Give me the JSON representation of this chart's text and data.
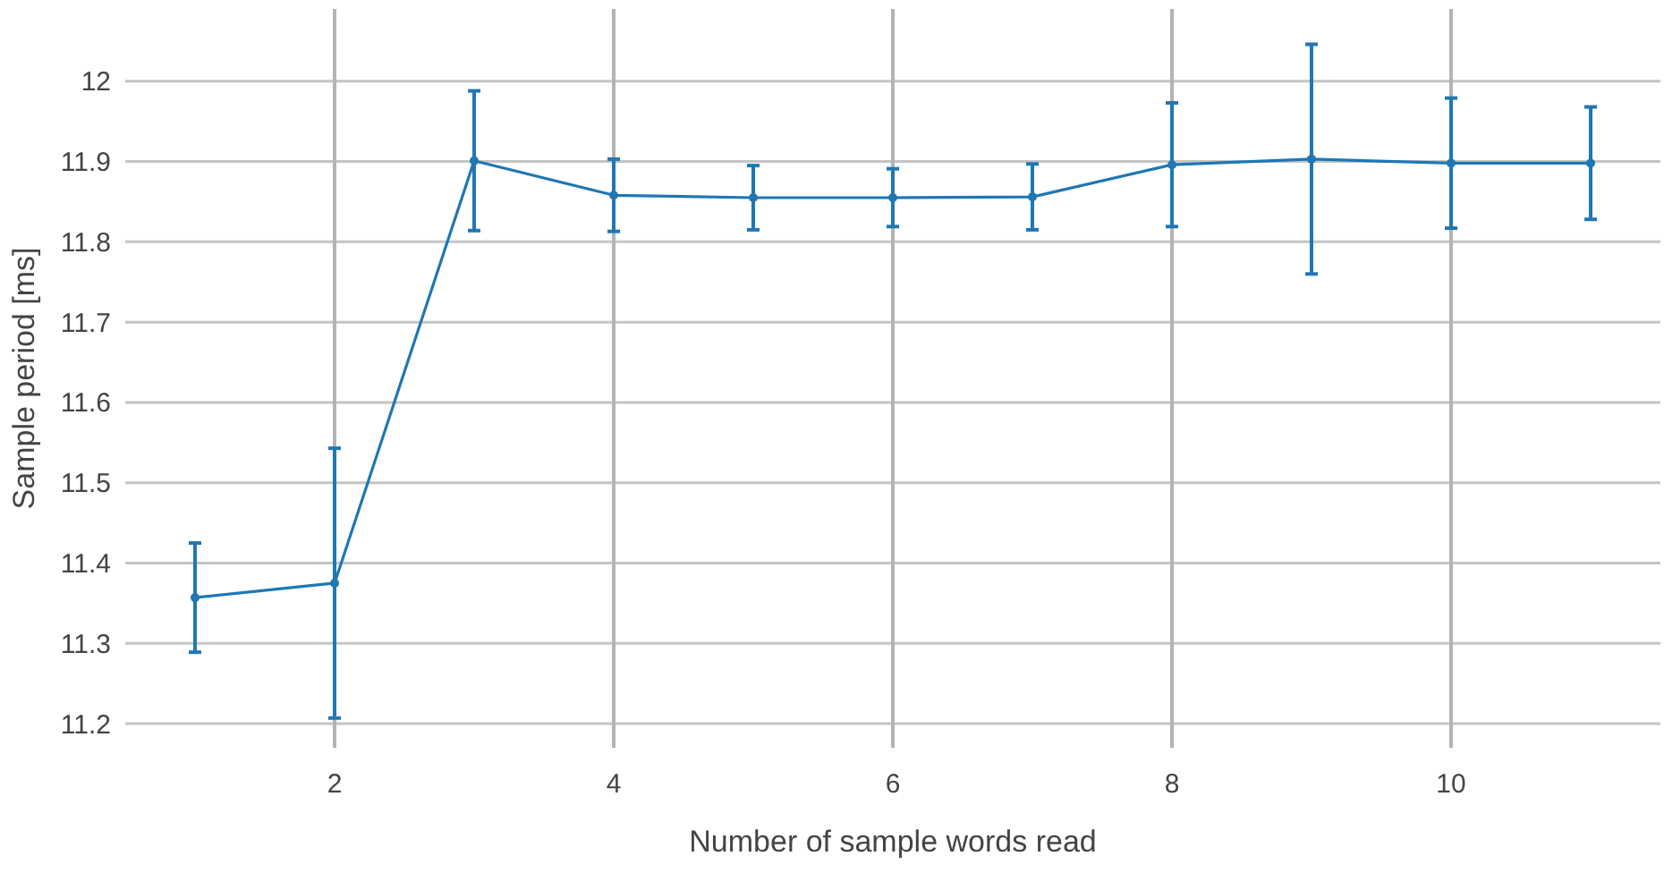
{
  "chart_data": {
    "type": "line",
    "xlabel": "Number of sample words read",
    "ylabel": "Sample period [ms]",
    "x": [
      1,
      2,
      3,
      4,
      5,
      6,
      7,
      8,
      9,
      10,
      11
    ],
    "series": [
      {
        "color": "#1f77b4",
        "values": [
          11.357,
          11.375,
          11.901,
          11.858,
          11.855,
          11.855,
          11.856,
          11.896,
          11.903,
          11.898,
          11.898
        ],
        "errors": [
          0.068,
          0.168,
          0.087,
          0.045,
          0.04,
          0.036,
          0.041,
          0.077,
          0.143,
          0.081,
          0.07
        ]
      }
    ],
    "xlim": [
      0.5,
      11.5
    ],
    "xticks": [
      2,
      4,
      6,
      8,
      10
    ],
    "ylim": [
      11.17,
      12.09
    ],
    "yticks": [
      11.2,
      11.3,
      11.4,
      11.5,
      11.6,
      11.7,
      11.8,
      11.9,
      12
    ],
    "grid": true,
    "marker": "circle",
    "line_style": "solid"
  }
}
